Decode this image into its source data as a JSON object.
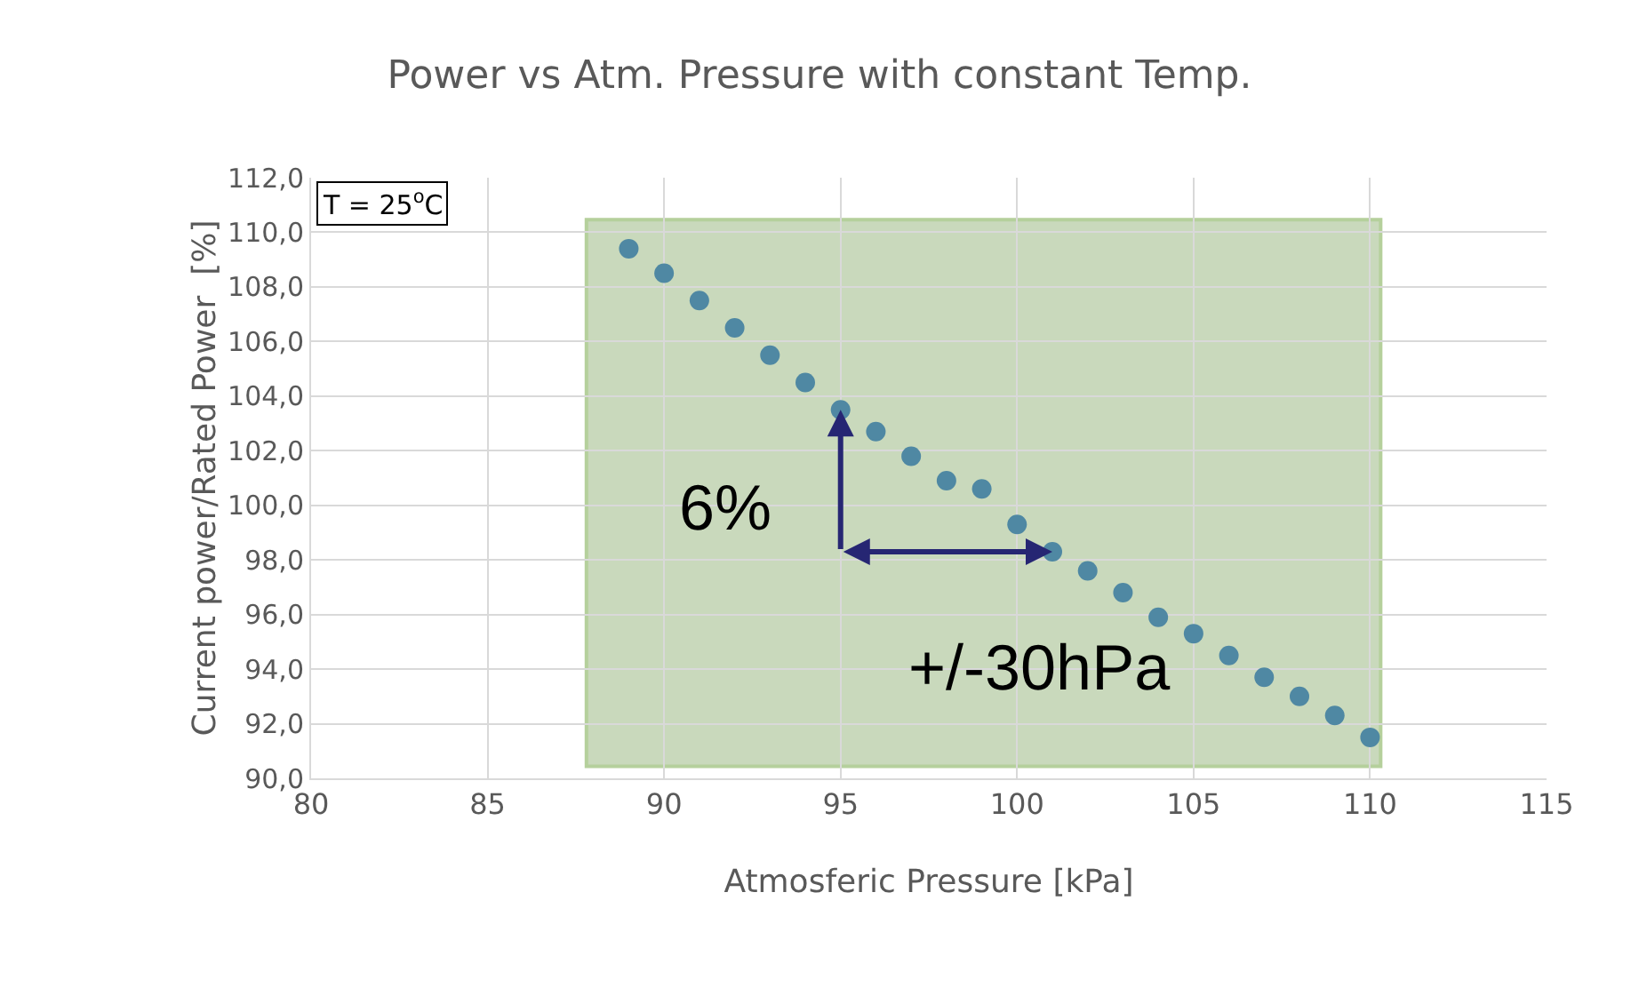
{
  "chart_data": {
    "type": "scatter",
    "title": "Power vs Atm. Pressure with constant Temp.",
    "xlabel": "Atmosferic Pressure [kPa]",
    "ylabel": "Current power/Rated Power  [%]",
    "x": [
      89,
      90,
      91,
      92,
      93,
      94,
      95,
      96,
      97,
      98,
      99,
      100,
      101,
      102,
      103,
      104,
      105,
      106,
      107,
      108,
      109,
      110
    ],
    "series": [
      {
        "color": "#4f88a3",
        "values": [
          109.4,
          108.5,
          107.5,
          106.5,
          105.5,
          104.5,
          103.5,
          102.7,
          101.8,
          100.9,
          100.6,
          99.3,
          98.3,
          97.6,
          96.8,
          95.9,
          95.3,
          94.5,
          93.7,
          93.0,
          92.3,
          91.5
        ]
      }
    ],
    "marker": "circle",
    "grid": true,
    "xlim": [
      80,
      115
    ],
    "xticks": [
      80,
      85,
      90,
      95,
      100,
      105,
      110,
      115
    ],
    "ylim": [
      90,
      112
    ],
    "yticks": [
      {
        "value": 90,
        "label": "90,0"
      },
      {
        "value": 92,
        "label": "92,0"
      },
      {
        "value": 94,
        "label": "94,0"
      },
      {
        "value": 96,
        "label": "96,0"
      },
      {
        "value": 98,
        "label": "98,0"
      },
      {
        "value": 100,
        "label": "100,0"
      },
      {
        "value": 102,
        "label": "102,0"
      },
      {
        "value": 104,
        "label": "104,0"
      },
      {
        "value": 106,
        "label": "106,0"
      },
      {
        "value": 108,
        "label": "108,0"
      },
      {
        "value": 110,
        "label": "110,0"
      },
      {
        "value": 112,
        "label": "112,0"
      }
    ],
    "bands": [
      {
        "axis": "x",
        "from": 87.8,
        "to": 110.3,
        "color": "#c9d9bc"
      }
    ],
    "annotations": [
      "T = 25$^{o}$C",
      {
        "text": "6%",
        "x": 95,
        "y": 103.5
      },
      {
        "text": "+/-30hPa",
        "x": 101,
        "y": 98.3
      }
    ]
  }
}
